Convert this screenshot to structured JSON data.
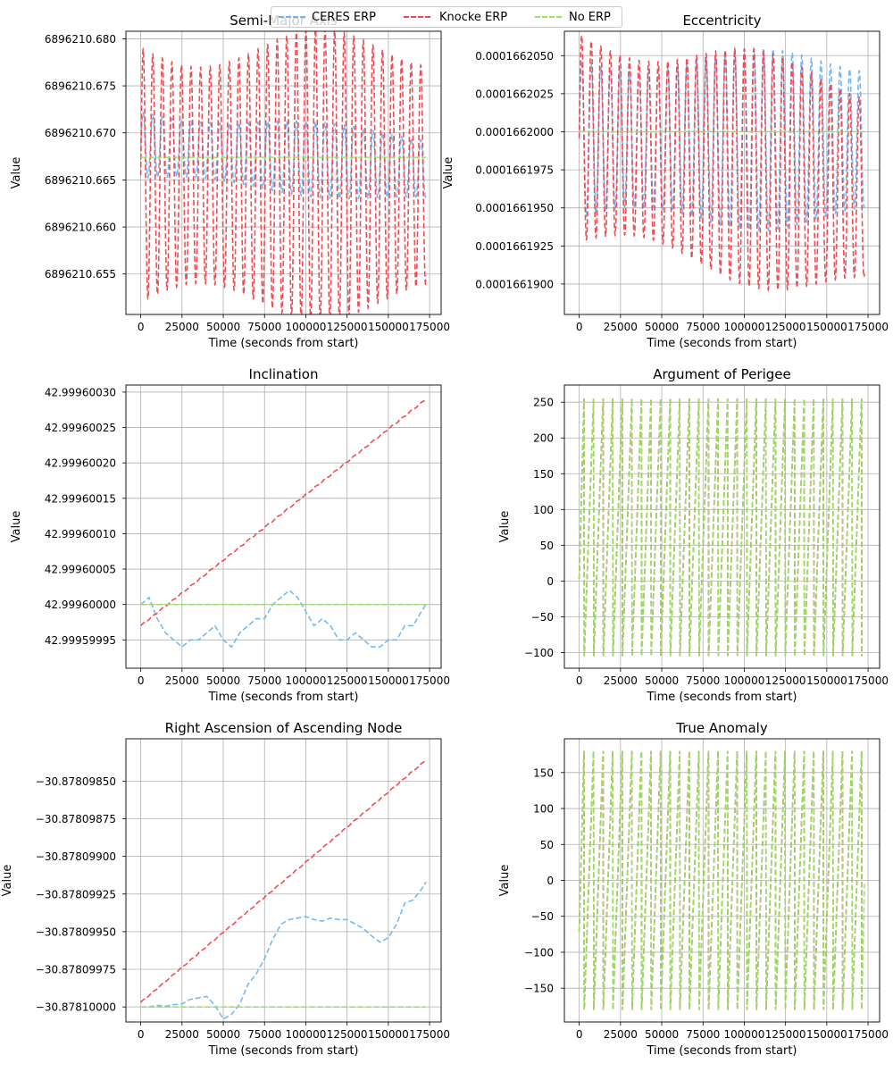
{
  "legend": {
    "items": [
      {
        "label": "CERES ERP",
        "color": "#6fb6f0"
      },
      {
        "label": "Knocke ERP",
        "color": "#f0434b"
      },
      {
        "label": "No ERP",
        "color": "#98e45f"
      }
    ]
  },
  "chart_data": [
    {
      "type": "line",
      "title": "Semi-Major Axis",
      "xlabel": "Time (seconds from start)",
      "ylabel": "Value",
      "xlim": [
        -9000,
        182000
      ],
      "ylim": [
        6896210.6507,
        6896210.6808
      ],
      "xticks": [
        0,
        25000,
        50000,
        75000,
        100000,
        125000,
        150000,
        175000
      ],
      "yticks": [
        6896210.655,
        6896210.66,
        6896210.665,
        6896210.67,
        6896210.675,
        6896210.68
      ],
      "ytick_labels": [
        "6896210.655",
        "6896210.660",
        "6896210.665",
        "6896210.670",
        "6896210.675",
        "6896210.680"
      ],
      "series": [
        {
          "name": "CERES ERP",
          "pattern": "osc",
          "center": [
            6896210.6687,
            6896210.6662
          ],
          "amplitude": 0.0035,
          "period": 5800,
          "x_end": 172800
        },
        {
          "name": "Knocke ERP",
          "pattern": "osc",
          "center": [
            6896210.6655,
            6896210.6655
          ],
          "amplitude": 0.0135,
          "period": 5800,
          "x_end": 172800
        },
        {
          "name": "No ERP",
          "pattern": "flat",
          "value": 6896210.6674,
          "x_end": 172800
        }
      ]
    },
    {
      "type": "line",
      "title": "Eccentricity",
      "xlabel": "Time (seconds from start)",
      "ylabel": "Value",
      "xlim": [
        -9000,
        182000
      ],
      "ylim": [
        0.000166188,
        0.0001662066
      ],
      "xticks": [
        0,
        25000,
        50000,
        75000,
        100000,
        125000,
        150000,
        175000
      ],
      "yticks": [
        0.00016619,
        0.0001661925,
        0.000166195,
        0.0001661975,
        0.0001662,
        0.0001662025,
        0.000166205
      ],
      "ytick_labels": [
        "0.0001661900",
        "0.0001661925",
        "0.0001661950",
        "0.0001661975",
        "0.0001662000",
        "0.0001662025",
        "0.0001662050"
      ],
      "series": [
        {
          "name": "CERES ERP",
          "pattern": "osc",
          "center": [
            0.0001661995,
            0.0001661995
          ],
          "amplitude": 5.2e-09,
          "period": 5800,
          "x_end": 172800
        },
        {
          "name": "Knocke ERP",
          "pattern": "osc",
          "center": [
            0.0001661996,
            0.0001661963
          ],
          "amplitude": 6.8e-09,
          "period": 5800,
          "x_end": 172800
        },
        {
          "name": "No ERP",
          "pattern": "flat",
          "value": 0.0001662,
          "x_end": 172800
        }
      ]
    },
    {
      "type": "line",
      "title": "Inclination",
      "xlabel": "Time (seconds from start)",
      "ylabel": "Value",
      "xlim": [
        -9000,
        182000
      ],
      "ylim": [
        42.99959991,
        42.99960031
      ],
      "xticks": [
        0,
        25000,
        50000,
        75000,
        100000,
        125000,
        150000,
        175000
      ],
      "yticks": [
        42.99959995,
        42.9996,
        42.99960005,
        42.9996001,
        42.99960015,
        42.9996002,
        42.99960025,
        42.9996003
      ],
      "ytick_labels": [
        "42.99959995",
        "42.99960000",
        "42.99960005",
        "42.99960010",
        "42.99960015",
        "42.99960020",
        "42.99960025",
        "42.99960030"
      ],
      "series": [
        {
          "name": "CERES ERP",
          "pattern": "points",
          "x": [
            0,
            5000,
            10000,
            15000,
            20000,
            25000,
            30000,
            35000,
            40000,
            45000,
            50000,
            55000,
            60000,
            65000,
            70000,
            75000,
            80000,
            85000,
            90000,
            95000,
            100000,
            105000,
            110000,
            115000,
            120000,
            125000,
            130000,
            135000,
            140000,
            145000,
            150000,
            155000,
            160000,
            165000,
            170000,
            172800
          ],
          "y": [
            42.9996,
            42.99960001,
            42.99959998,
            42.99959996,
            42.99959995,
            42.99959994,
            42.99959995,
            42.99959995,
            42.99959996,
            42.99959997,
            42.99959995,
            42.99959994,
            42.99959996,
            42.99959997,
            42.99959998,
            42.99959998,
            42.9996,
            42.99960001,
            42.99960002,
            42.99960001,
            42.99959999,
            42.99959997,
            42.99959998,
            42.99959997,
            42.99959995,
            42.99959995,
            42.99959996,
            42.99959995,
            42.99959994,
            42.99959994,
            42.99959995,
            42.99959995,
            42.99959997,
            42.99959997,
            42.99959999,
            42.9996
          ]
        },
        {
          "name": "Knocke ERP",
          "pattern": "trend",
          "y0": 42.99959997,
          "y1": 42.99960029,
          "wiggle": 8e-10,
          "x_end": 172800
        },
        {
          "name": "No ERP",
          "pattern": "flat",
          "value": 42.9996,
          "x_end": 172800
        }
      ]
    },
    {
      "type": "line",
      "title": "Argument of Perigee",
      "xlabel": "Time (seconds from start)",
      "ylabel": "Value",
      "xlim": [
        -9000,
        182000
      ],
      "ylim": [
        -122,
        274
      ],
      "xticks": [
        0,
        25000,
        50000,
        75000,
        100000,
        125000,
        150000,
        175000
      ],
      "yticks": [
        -100,
        -50,
        0,
        50,
        100,
        150,
        200,
        250
      ],
      "ytick_labels": [
        "−100",
        "−50",
        "0",
        "50",
        "100",
        "150",
        "200",
        "250"
      ],
      "series": [
        {
          "name": "CERES ERP",
          "pattern": "saw",
          "min": -105,
          "max": 255,
          "period": 5800,
          "x_end": 172800
        },
        {
          "name": "Knocke ERP",
          "pattern": "saw",
          "min": -105,
          "max": 255,
          "period": 5800,
          "x_end": 172800
        },
        {
          "name": "No ERP",
          "pattern": "saw",
          "min": -105,
          "max": 255,
          "period": 5800,
          "x_end": 172800
        }
      ]
    },
    {
      "type": "line",
      "title": "Right Ascension of Ascending Node",
      "xlabel": "Time (seconds from start)",
      "ylabel": "Value",
      "xlim": [
        -9000,
        182000
      ],
      "ylim": [
        -30.8781001,
        -30.878098219
      ],
      "xticks": [
        0,
        25000,
        50000,
        75000,
        100000,
        125000,
        150000,
        175000
      ],
      "yticks": [
        -30.8781,
        -30.87809975,
        -30.8780995,
        -30.87809925,
        -30.878099,
        -30.87809875,
        -30.8780985
      ],
      "ytick_labels": [
        "−30.87810000",
        "−30.87809975",
        "−30.87809950",
        "−30.87809925",
        "−30.87809900",
        "−30.87809875",
        "−30.87809850"
      ],
      "series": [
        {
          "name": "CERES ERP",
          "pattern": "points",
          "x": [
            0,
            5000,
            10000,
            15000,
            20000,
            25000,
            30000,
            35000,
            40000,
            45000,
            50000,
            55000,
            60000,
            65000,
            70000,
            75000,
            80000,
            85000,
            90000,
            95000,
            100000,
            105000,
            110000,
            115000,
            120000,
            125000,
            130000,
            135000,
            140000,
            145000,
            150000,
            155000,
            160000,
            165000,
            170000,
            172800
          ],
          "y": [
            -30.8781,
            -30.8781,
            -30.87809999,
            -30.878099995,
            -30.878099985,
            -30.87809998,
            -30.87809995,
            -30.87809994,
            -30.87809993,
            -30.87809999,
            -30.87810008,
            -30.87810005,
            -30.87809998,
            -30.87809985,
            -30.87809978,
            -30.87809968,
            -30.87809955,
            -30.87809945,
            -30.87809942,
            -30.87809941,
            -30.8780994,
            -30.87809942,
            -30.87809943,
            -30.87809941,
            -30.87809942,
            -30.87809942,
            -30.87809945,
            -30.87809948,
            -30.87809953,
            -30.87809957,
            -30.87809954,
            -30.87809945,
            -30.87809931,
            -30.87809929,
            -30.87809922,
            -30.87809917
          ]
        },
        {
          "name": "Knocke ERP",
          "pattern": "trend",
          "y0": -30.87809997,
          "y1": -30.87809836,
          "wiggle": 3e-09,
          "x_end": 172800
        },
        {
          "name": "No ERP",
          "pattern": "flat",
          "value": -30.8781,
          "x_end": 172800
        }
      ]
    },
    {
      "type": "line",
      "title": "True Anomaly",
      "xlabel": "Time (seconds from start)",
      "ylabel": "Value",
      "xlim": [
        -9000,
        182000
      ],
      "ylim": [
        -197,
        197
      ],
      "xticks": [
        0,
        25000,
        50000,
        75000,
        100000,
        125000,
        150000,
        175000
      ],
      "yticks": [
        -150,
        -100,
        -50,
        0,
        50,
        100,
        150
      ],
      "ytick_labels": [
        "−150",
        "−100",
        "−50",
        "0",
        "50",
        "100",
        "150"
      ],
      "series": [
        {
          "name": "CERES ERP",
          "pattern": "saw",
          "min": -180,
          "max": 180,
          "period": 5800,
          "x_end": 172800
        },
        {
          "name": "Knocke ERP",
          "pattern": "saw",
          "min": -180,
          "max": 180,
          "period": 5800,
          "x_end": 172800
        },
        {
          "name": "No ERP",
          "pattern": "saw",
          "min": -180,
          "max": 180,
          "period": 5800,
          "x_end": 172800,
          "end_value": -5
        }
      ]
    }
  ]
}
